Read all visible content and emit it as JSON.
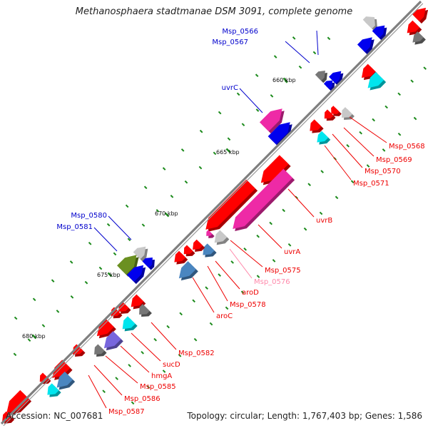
{
  "map": {
    "title": "Methanosphaera stadtmanae DSM 3091, complete genome",
    "accession": "Accession: NC_007681",
    "summary": "Topology: circular; Length: 1,767,403 bp; Genes: 1,586"
  },
  "colors": {
    "backbone": "#7f7f7f",
    "forward_label": "#0000cc",
    "reverse_label": "#ee0000",
    "light_label": "#ff88aa",
    "tick": "#1b8a1b",
    "red": "#ff0000",
    "blue": "#0000ee",
    "magenta": "#ee2aa6",
    "cyan": "#00e5ee",
    "steel": "#4a86c0",
    "grey": "#777777",
    "light_grey": "#c8c8c8",
    "olive": "#6b9021",
    "violet": "#7766dd"
  },
  "kbp_ticks": [
    "660 kbp",
    "665 kbp",
    "670 kbp",
    "675 kbp",
    "680 kbp"
  ],
  "genes": [
    {
      "label": "Msp_0566",
      "strand": "forward",
      "color": "grey"
    },
    {
      "label": "Msp_0567",
      "strand": "forward",
      "color": "blue"
    },
    {
      "label": "uvrC",
      "strand": "forward",
      "color": "magenta"
    },
    {
      "label": "Msp_0568",
      "strand": "reverse",
      "color": "light_grey"
    },
    {
      "label": "Msp_0569",
      "strand": "reverse",
      "color": "red"
    },
    {
      "label": "Msp_0570",
      "strand": "reverse",
      "color": "red"
    },
    {
      "label": "Msp_0571",
      "strand": "reverse",
      "color": "cyan"
    },
    {
      "label": "uvrB",
      "strand": "reverse",
      "color": "magenta"
    },
    {
      "label": "uvrA",
      "strand": "reverse",
      "color": "red"
    },
    {
      "label": "Msp_0575",
      "strand": "reverse",
      "color": "light_grey"
    },
    {
      "label": "Msp_0576",
      "strand": "reverse",
      "color": "magenta"
    },
    {
      "label": "aroD",
      "strand": "reverse",
      "color": "steel"
    },
    {
      "label": "Msp_0578",
      "strand": "reverse",
      "color": "red"
    },
    {
      "label": "aroC",
      "strand": "reverse",
      "color": "steel"
    },
    {
      "label": "Msp_0580",
      "strand": "forward",
      "color": "light_grey"
    },
    {
      "label": "Msp_0581",
      "strand": "forward",
      "color": "olive"
    },
    {
      "label": "Msp_0582",
      "strand": "reverse",
      "color": "grey"
    },
    {
      "label": "sucD",
      "strand": "reverse",
      "color": "violet"
    },
    {
      "label": "hmgA",
      "strand": "reverse",
      "color": "grey"
    },
    {
      "label": "Msp_0585",
      "strand": "reverse",
      "color": "red"
    },
    {
      "label": "Msp_0586",
      "strand": "reverse",
      "color": "steel"
    },
    {
      "label": "Msp_0587",
      "strand": "reverse",
      "color": "red"
    }
  ]
}
